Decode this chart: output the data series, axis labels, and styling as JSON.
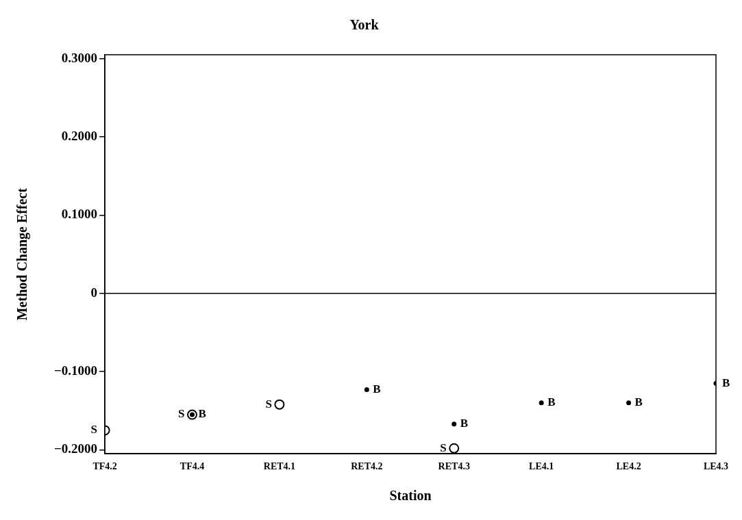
{
  "chart_data": {
    "type": "scatter",
    "title": "York",
    "xlabel": "Station",
    "ylabel": "Method Change Effect",
    "categories": [
      "TF4.2",
      "TF4.4",
      "RET4.1",
      "RET4.2",
      "RET4.3",
      "LE4.1",
      "LE4.2",
      "LE4.3"
    ],
    "series": [
      {
        "name": "S",
        "color": "#000000",
        "values": [
          -0.175,
          -0.155,
          -0.142,
          null,
          -0.198,
          null,
          null,
          null
        ]
      },
      {
        "name": "B",
        "color": "#000000",
        "values": [
          null,
          -0.155,
          null,
          -0.123,
          -0.167,
          -0.14,
          -0.14,
          -0.115
        ]
      }
    ],
    "ylim": [
      -0.205,
      0.305
    ],
    "yticks": [
      {
        "value": -0.2,
        "label": "−0.2000"
      },
      {
        "value": -0.1,
        "label": "−0.1000"
      },
      0,
      {
        "value": 0.1,
        "label": "0.1000"
      },
      {
        "value": 0.2,
        "label": "0.2000"
      },
      {
        "value": 0.3,
        "label": "0.3000"
      }
    ],
    "ref_lines": [
      {
        "axis": "y",
        "value": 0,
        "color": "#000000"
      }
    ],
    "grid": false,
    "legend": false
  }
}
